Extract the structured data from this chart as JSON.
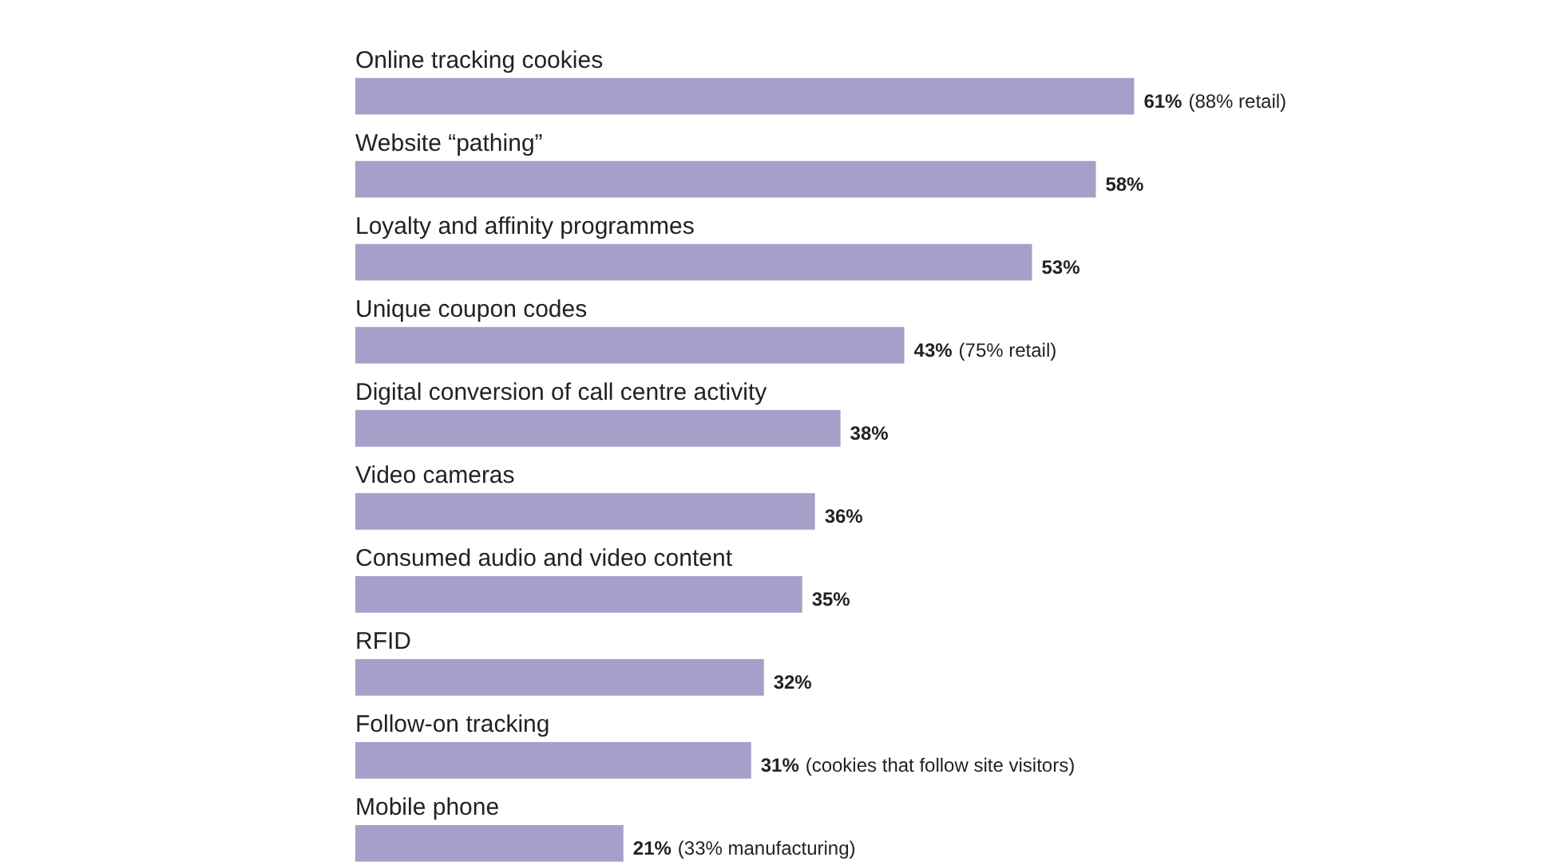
{
  "chart_data": {
    "type": "bar",
    "orientation": "horizontal",
    "categories": [
      "Online tracking cookies",
      "Website “pathing”",
      "Loyalty and affinity programmes",
      "Unique coupon codes",
      "Digital conversion of call centre activity",
      "Video cameras",
      "Consumed audio and video content",
      "RFID",
      "Follow-on tracking",
      "Mobile phone"
    ],
    "values": [
      61,
      58,
      53,
      43,
      38,
      36,
      35,
      32,
      31,
      21
    ],
    "value_labels": [
      "61% (88% retail)",
      "58%",
      "53%",
      "43% (75% retail)",
      "38%",
      "36%",
      "35%",
      "32%",
      "31% (cookies that follow site visitors)",
      "21% (33% manufacturing)"
    ],
    "color": "#a59fc9"
  }
}
